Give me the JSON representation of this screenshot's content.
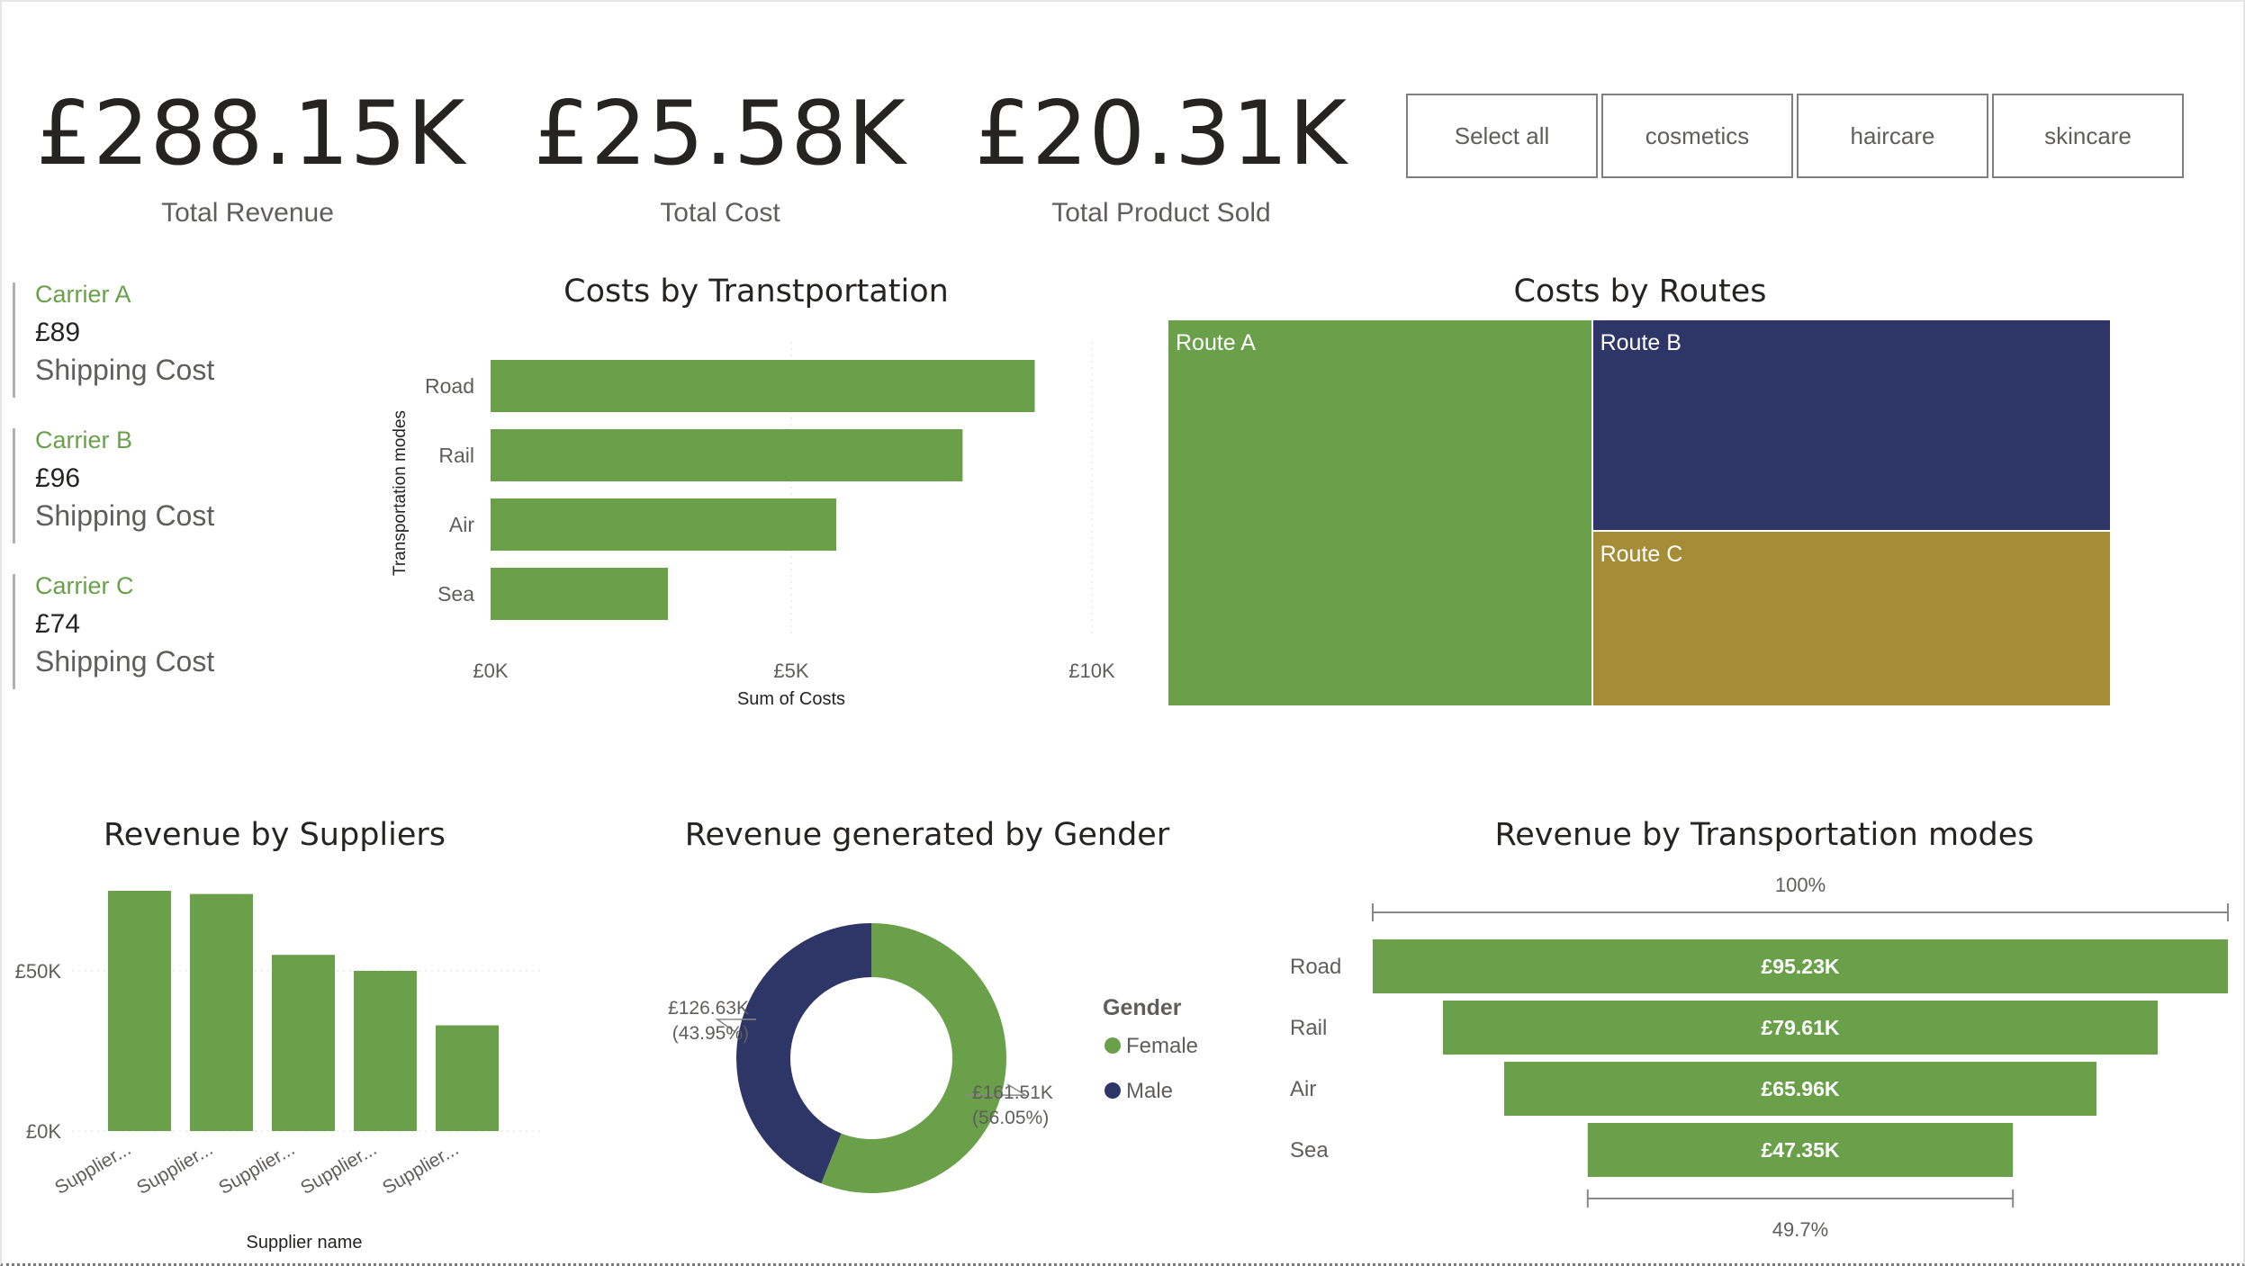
{
  "kpis": [
    {
      "value": "£288.15K",
      "label": "Total Revenue"
    },
    {
      "value": "£25.58K",
      "label": "Total Cost"
    },
    {
      "value": "£20.31K",
      "label": "Total Product Sold"
    }
  ],
  "slicer": {
    "items": [
      "Select all",
      "cosmetics",
      "haircare",
      "skincare"
    ]
  },
  "carriers": [
    {
      "name": "Carrier A",
      "cost": "£89",
      "sub": "Shipping Cost"
    },
    {
      "name": "Carrier B",
      "cost": "£96",
      "sub": "Shipping Cost"
    },
    {
      "name": "Carrier C",
      "cost": "£74",
      "sub": "Shipping Cost"
    }
  ],
  "colors": {
    "green": "#6aa04a",
    "navy": "#2e3667",
    "gold": "#a58c36",
    "accent_text": "#6aa04a"
  },
  "chart_data": [
    {
      "type": "bar",
      "orientation": "horizontal",
      "title": "Costs by Transtportation",
      "xlabel": "Sum of Costs",
      "ylabel": "Transportation modes",
      "categories": [
        "Road",
        "Rail",
        "Air",
        "Sea"
      ],
      "values": [
        9050,
        7850,
        5750,
        2950
      ],
      "xlim": [
        0,
        10000
      ],
      "xticks": [
        "£0K",
        "£5K",
        "£10K"
      ],
      "xtick_values": [
        0,
        5000,
        10000
      ],
      "color": "#6aa04a",
      "grid": true
    },
    {
      "type": "treemap",
      "title": "Costs by Routes",
      "categories": [
        "Route A",
        "Route B",
        "Route C"
      ],
      "values": [
        45,
        30,
        25
      ],
      "colors": [
        "#6aa04a",
        "#2e3667",
        "#a58c36"
      ]
    },
    {
      "type": "bar",
      "title": "Revenue by Suppliers",
      "xlabel": "Supplier name",
      "ylabel": "",
      "categories": [
        "Supplier...",
        "Supplier...",
        "Supplier...",
        "Supplier...",
        "Supplier..."
      ],
      "values": [
        75000,
        74000,
        55000,
        50000,
        33000
      ],
      "ylim": [
        0,
        75000
      ],
      "yticks": [
        "£0K",
        "£50K"
      ],
      "ytick_values": [
        0,
        50000
      ],
      "color": "#6aa04a",
      "grid": true
    },
    {
      "type": "pie",
      "donut": true,
      "title": "Revenue generated by Gender",
      "legend_title": "Gender",
      "categories": [
        "Female",
        "Male"
      ],
      "values": [
        161.51,
        126.63
      ],
      "colors": [
        "#6aa04a",
        "#2e3667"
      ],
      "labels": [
        {
          "value": "£161.51K",
          "pct": "(56.05%)"
        },
        {
          "value": "£126.63K",
          "pct": "(43.95%)"
        }
      ],
      "legend_position": "right"
    },
    {
      "type": "funnel",
      "title": "Revenue by Transportation modes",
      "categories": [
        "Road",
        "Rail",
        "Air",
        "Sea"
      ],
      "values": [
        95.23,
        79.61,
        65.96,
        47.35
      ],
      "value_labels": [
        "£95.23K",
        "£79.61K",
        "£65.96K",
        "£47.35K"
      ],
      "top_label": "100%",
      "bottom_label": "49.7%",
      "color": "#6aa04a"
    }
  ]
}
